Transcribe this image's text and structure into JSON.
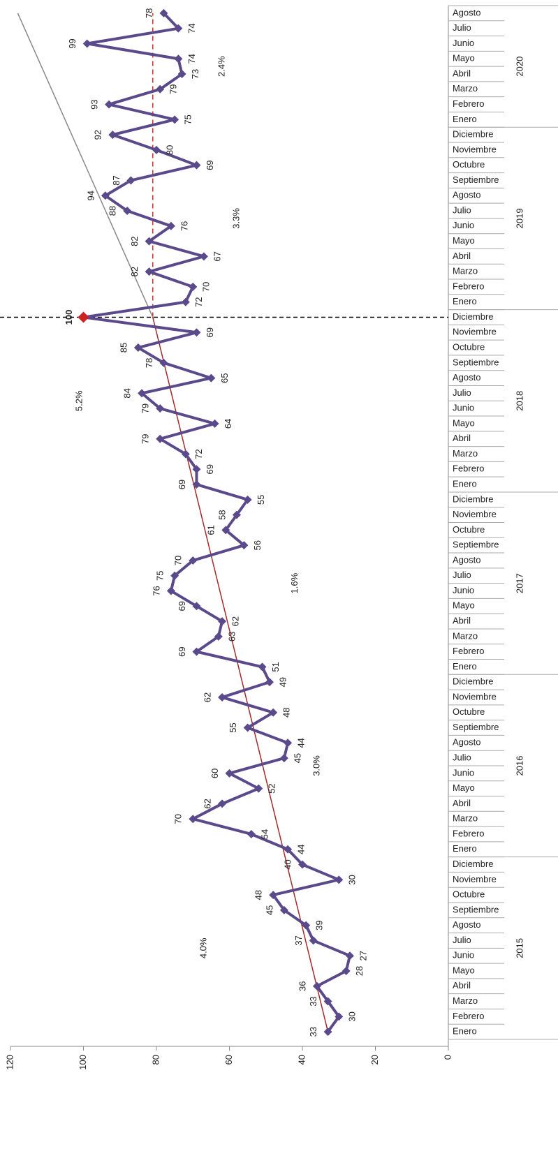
{
  "chart_data": {
    "type": "line",
    "categories": [
      "Enero",
      "Febrero",
      "Marzo",
      "Abril",
      "Mayo",
      "Junio",
      "Julio",
      "Agosto",
      "Septiembre",
      "Octubre",
      "Noviembre",
      "Diciembre",
      "Enero",
      "Febrero",
      "Marzo",
      "Abril",
      "Mayo",
      "Junio",
      "Julio",
      "Agosto",
      "Septiembre",
      "Octubre",
      "Noviembre",
      "Diciembre",
      "Enero",
      "Febrero",
      "Marzo",
      "Abril",
      "Mayo",
      "Junio",
      "Julio",
      "Agosto",
      "Septiembre",
      "Octubre",
      "Noviembre",
      "Diciembre",
      "Enero",
      "Febrero",
      "Marzo",
      "Abril",
      "Mayo",
      "Junio",
      "Julio",
      "Agosto",
      "Septiembre",
      "Octubre",
      "Noviembre",
      "Diciembre",
      "Enero",
      "Febrero",
      "Marzo",
      "Abril",
      "Mayo",
      "Junio",
      "Julio",
      "Agosto",
      "Septiembre",
      "Octubre",
      "Noviembre",
      "Diciembre",
      "Enero",
      "Febrero",
      "Marzo",
      "Abril",
      "Mayo",
      "Junio",
      "Julio",
      "Agosto"
    ],
    "year_groups": [
      {
        "name": "2015",
        "months": 12
      },
      {
        "name": "2016",
        "months": 12
      },
      {
        "name": "2017",
        "months": 12
      },
      {
        "name": "2018",
        "months": 12
      },
      {
        "name": "2019",
        "months": 12
      },
      {
        "name": "2020",
        "months": 8
      }
    ],
    "values": [
      33,
      30,
      33,
      36,
      28,
      27,
      37,
      39,
      45,
      48,
      30,
      40,
      44,
      54,
      70,
      62,
      52,
      60,
      45,
      44,
      55,
      48,
      62,
      49,
      51,
      69,
      63,
      62,
      69,
      76,
      75,
      70,
      56,
      61,
      58,
      55,
      69,
      69,
      72,
      79,
      64,
      79,
      84,
      65,
      78,
      85,
      69,
      100,
      72,
      70,
      82,
      67,
      82,
      76,
      88,
      94,
      87,
      69,
      80,
      92,
      75,
      93,
      79,
      73,
      74,
      99,
      74,
      78
    ],
    "color": "#5b4a8b",
    "highlight": {
      "index": 47,
      "color": "#cc2222"
    },
    "ylim": [
      0,
      120
    ],
    "yticks": [
      0,
      20,
      40,
      60,
      80,
      100,
      120
    ],
    "trend_lines": [
      {
        "color": "#a52a2a",
        "x": [
          0,
          47
        ],
        "y": [
          33,
          81
        ]
      },
      {
        "color": "#888888",
        "x": [
          47,
          67
        ],
        "y": [
          81,
          118
        ]
      }
    ],
    "reference_line": {
      "color": "#c0392b",
      "x": [
        47,
        67
      ],
      "y": 81
    },
    "divider_index": 47,
    "annotations": [
      "4.0%",
      "3.0%",
      "1.6%",
      "5.2%",
      "3.3%",
      "2.4%"
    ],
    "annotation_color": "#cc2222"
  }
}
